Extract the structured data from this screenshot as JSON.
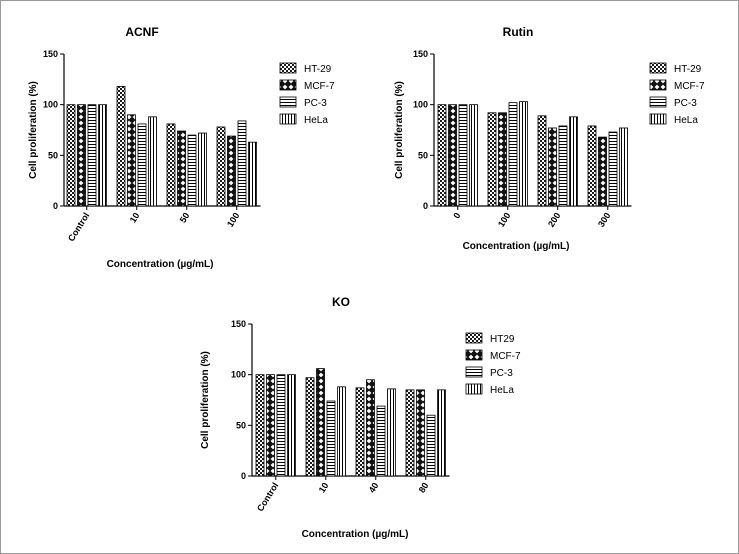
{
  "chart_data": [
    {
      "type": "bar",
      "title": "ACNF",
      "xlabel": "Concentration (µg/mL)",
      "ylabel": "Cell proliferation (%)",
      "ylim": [
        0,
        150
      ],
      "yticks": [
        "0",
        "50",
        "100",
        "150"
      ],
      "categories": [
        "Control",
        "10",
        "50",
        "100"
      ],
      "series": [
        {
          "name": "HT-29",
          "pattern": "checker",
          "values": [
            100,
            118,
            81,
            78
          ]
        },
        {
          "name": "MCF-7",
          "pattern": "diamond",
          "values": [
            100,
            90,
            74,
            69
          ]
        },
        {
          "name": "PC-3",
          "pattern": "hlines",
          "values": [
            100,
            81,
            70,
            84
          ]
        },
        {
          "name": "HeLa",
          "pattern": "vlines",
          "values": [
            100,
            88,
            72,
            63
          ]
        }
      ],
      "legend": "right",
      "grid": false
    },
    {
      "type": "bar",
      "title": "Rutin",
      "xlabel": "Concentration (µg/mL)",
      "ylabel": "Cell proliferation (%)",
      "ylim": [
        0,
        150
      ],
      "yticks": [
        "0",
        "50",
        "100",
        "150"
      ],
      "categories": [
        "0",
        "100",
        "200",
        "300"
      ],
      "series": [
        {
          "name": "HT-29",
          "pattern": "checker",
          "values": [
            100,
            92,
            89,
            79
          ]
        },
        {
          "name": "MCF-7",
          "pattern": "diamond",
          "values": [
            100,
            92,
            77,
            68
          ]
        },
        {
          "name": "PC-3",
          "pattern": "hlines",
          "values": [
            100,
            102,
            79,
            73
          ]
        },
        {
          "name": "HeLa",
          "pattern": "vlines",
          "values": [
            100,
            103,
            88,
            77
          ]
        }
      ],
      "legend": "right",
      "grid": false
    },
    {
      "type": "bar",
      "title": "KO",
      "xlabel": "Concentration (µg/mL)",
      "ylabel": "Cell proliferation (%)",
      "ylim": [
        0,
        150
      ],
      "yticks": [
        "0",
        "50",
        "100",
        "150"
      ],
      "categories": [
        "Control",
        "10",
        "40",
        "80"
      ],
      "series": [
        {
          "name": "HT29",
          "pattern": "checker",
          "values": [
            100,
            97,
            87,
            85
          ]
        },
        {
          "name": "MCF-7",
          "pattern": "diamond",
          "values": [
            100,
            106,
            95,
            85
          ]
        },
        {
          "name": "PC-3",
          "pattern": "hlines",
          "values": [
            100,
            74,
            69,
            60
          ]
        },
        {
          "name": "HeLa",
          "pattern": "vlines",
          "values": [
            100,
            88,
            86,
            85
          ]
        }
      ],
      "legend": "right",
      "grid": false
    }
  ]
}
